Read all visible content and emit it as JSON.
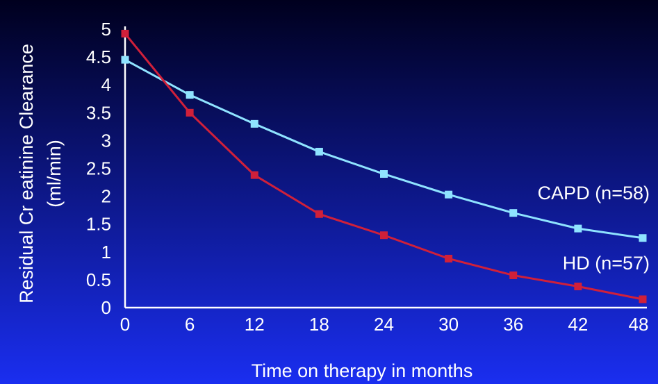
{
  "colors": {
    "background_top": "#00001e",
    "background_bottom": "#1a2ef0",
    "axis": "#ffffff",
    "text": "#ffffff"
  },
  "chart_data": {
    "type": "line",
    "xlabel": "Time on therapy in months",
    "ylabel": [
      "Residual Cr  eatinine Clearance",
      "(ml/min)"
    ],
    "x": [
      0,
      6,
      12,
      18,
      24,
      30,
      36,
      42,
      48
    ],
    "xlim": [
      0,
      48
    ],
    "ylim": [
      0,
      5
    ],
    "x_ticks": [
      "0",
      "6",
      "12",
      "18",
      "24",
      "30",
      "36",
      "42",
      "48"
    ],
    "y_ticks": [
      "0",
      "0.5",
      "1",
      "1.5",
      "2",
      "2.5",
      "3",
      "3.5",
      "4",
      "4.5",
      "5"
    ],
    "grid": false,
    "legend": "inline labels at right end of lines",
    "series": [
      {
        "name": "CAPD (n=58)",
        "color": "#8fe3ff",
        "marker": "square",
        "values": [
          4.45,
          3.82,
          3.3,
          2.8,
          2.4,
          2.03,
          1.7,
          1.42,
          1.25
        ]
      },
      {
        "name": "HD (n=57)",
        "color": "#d0203a",
        "marker": "square",
        "values": [
          4.92,
          3.5,
          2.38,
          1.68,
          1.3,
          0.88,
          0.58,
          0.38,
          0.15
        ]
      }
    ]
  }
}
